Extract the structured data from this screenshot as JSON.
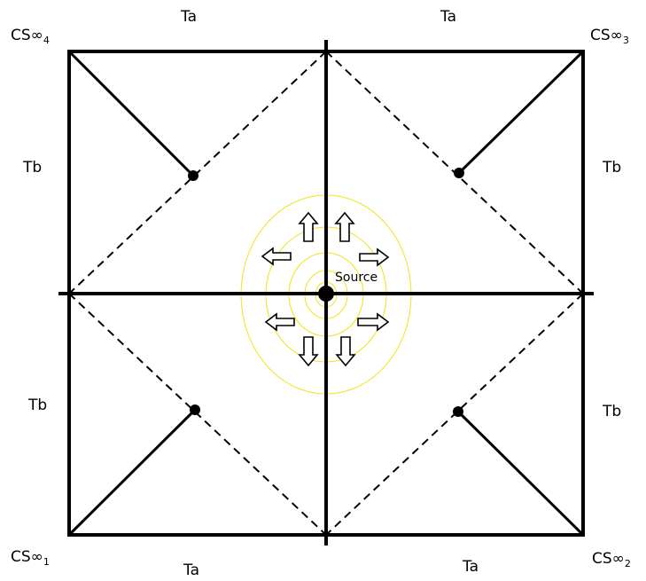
{
  "colors": {
    "stroke": "#000000",
    "contour": "#f2e21a",
    "background": "#ffffff"
  },
  "labels": {
    "ta": "Ta",
    "tb": "Tb",
    "source": "Source"
  },
  "corners": [
    {
      "prefix": "CS",
      "symbol": "∞",
      "index": "4"
    },
    {
      "prefix": "CS",
      "symbol": "∞",
      "index": "3"
    },
    {
      "prefix": "CS",
      "symbol": "∞",
      "index": "1"
    },
    {
      "prefix": "CS",
      "symbol": "∞",
      "index": "2"
    }
  ],
  "icons": {
    "arrow": "hollow-arrow-icon",
    "point": "dot-icon"
  }
}
